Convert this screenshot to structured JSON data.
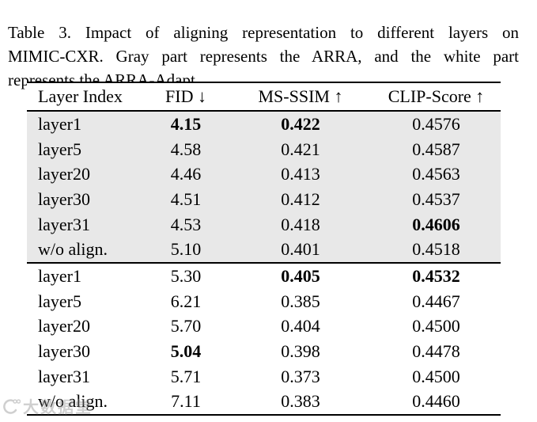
{
  "caption": {
    "label": "Table 3.",
    "lines": [
      "Table 3.  Impact of aligning representation to different layers on",
      "MIMIC-CXR. Gray part represents the ARRA, and the white part",
      "represents the ARRA-Adapt."
    ],
    "full_text": "Table 3. Impact of aligning representation to different layers on MIMIC-CXR. Gray part represents the ARRA, and the white part represents the ARRA-Adapt."
  },
  "table": {
    "columns": [
      "Layer Index",
      "FID ↓",
      "MS-SSIM ↑",
      "CLIP-Score ↑"
    ],
    "sections": [
      {
        "name": "ARRA",
        "shaded": true,
        "rows": [
          [
            {
              "text": "layer1",
              "bold": false
            },
            {
              "text": "4.15",
              "bold": true
            },
            {
              "text": "0.422",
              "bold": true
            },
            {
              "text": "0.4576",
              "bold": false
            }
          ],
          [
            {
              "text": "layer5",
              "bold": false
            },
            {
              "text": "4.58",
              "bold": false
            },
            {
              "text": "0.421",
              "bold": false
            },
            {
              "text": "0.4587",
              "bold": false
            }
          ],
          [
            {
              "text": "layer20",
              "bold": false
            },
            {
              "text": "4.46",
              "bold": false
            },
            {
              "text": "0.413",
              "bold": false
            },
            {
              "text": "0.4563",
              "bold": false
            }
          ],
          [
            {
              "text": "layer30",
              "bold": false
            },
            {
              "text": "4.51",
              "bold": false
            },
            {
              "text": "0.412",
              "bold": false
            },
            {
              "text": "0.4537",
              "bold": false
            }
          ],
          [
            {
              "text": "layer31",
              "bold": false
            },
            {
              "text": "4.53",
              "bold": false
            },
            {
              "text": "0.418",
              "bold": false
            },
            {
              "text": "0.4606",
              "bold": true
            }
          ],
          [
            {
              "text": "w/o align.",
              "bold": false
            },
            {
              "text": "5.10",
              "bold": false
            },
            {
              "text": "0.401",
              "bold": false
            },
            {
              "text": "0.4518",
              "bold": false
            }
          ]
        ]
      },
      {
        "name": "ARRA-Adapt",
        "shaded": false,
        "rows": [
          [
            {
              "text": "layer1",
              "bold": false
            },
            {
              "text": "5.30",
              "bold": false
            },
            {
              "text": "0.405",
              "bold": true
            },
            {
              "text": "0.4532",
              "bold": true
            }
          ],
          [
            {
              "text": "layer5",
              "bold": false
            },
            {
              "text": "6.21",
              "bold": false
            },
            {
              "text": "0.385",
              "bold": false
            },
            {
              "text": "0.4467",
              "bold": false
            }
          ],
          [
            {
              "text": "layer20",
              "bold": false
            },
            {
              "text": "5.70",
              "bold": false
            },
            {
              "text": "0.404",
              "bold": false
            },
            {
              "text": "0.4500",
              "bold": false
            }
          ],
          [
            {
              "text": "layer30",
              "bold": false
            },
            {
              "text": "5.04",
              "bold": true
            },
            {
              "text": "0.398",
              "bold": false
            },
            {
              "text": "0.4478",
              "bold": false
            }
          ],
          [
            {
              "text": "layer31",
              "bold": false
            },
            {
              "text": "5.71",
              "bold": false
            },
            {
              "text": "0.373",
              "bold": false
            },
            {
              "text": "0.4500",
              "bold": false
            }
          ],
          [
            {
              "text": "w/o align.",
              "bold": false
            },
            {
              "text": "7.11",
              "bold": false
            },
            {
              "text": "0.383",
              "bold": false
            },
            {
              "text": "0.4460",
              "bold": false
            }
          ]
        ]
      }
    ]
  },
  "watermark": {
    "text": "大数据堂"
  },
  "colors": {
    "shaded_bg": "#e8e8e8",
    "rule": "#000000",
    "page_bg": "#ffffff",
    "watermark": "#8f8f8f"
  }
}
